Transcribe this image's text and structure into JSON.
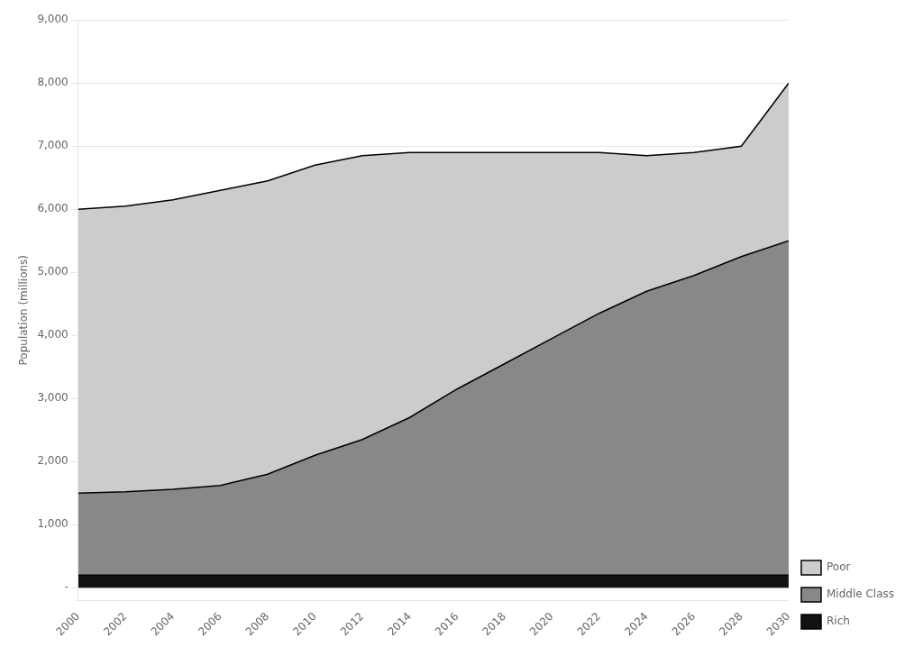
{
  "chart_data": {
    "type": "area",
    "x": [
      2000,
      2002,
      2004,
      2006,
      2008,
      2010,
      2012,
      2014,
      2016,
      2018,
      2020,
      2022,
      2024,
      2026,
      2028,
      2030
    ],
    "series": [
      {
        "name": "Rich",
        "color": "#111111",
        "values": [
          200,
          200,
          200,
          200,
          200,
          200,
          200,
          200,
          200,
          200,
          200,
          200,
          200,
          200,
          200,
          200
        ]
      },
      {
        "name": "Middle Class",
        "color": "#888888",
        "values": [
          1300,
          1320,
          1360,
          1420,
          1600,
          1900,
          2150,
          2500,
          2950,
          3350,
          3750,
          4150,
          4500,
          4750,
          5050,
          5300
        ]
      },
      {
        "name": "Poor",
        "color": "#cccccc",
        "values": [
          4500,
          4530,
          4590,
          4680,
          4650,
          4600,
          4500,
          4200,
          3750,
          3350,
          2950,
          2550,
          2150,
          1950,
          1750,
          2500
        ]
      }
    ],
    "stacked": true,
    "y_label": "Population (millions)",
    "xlim": [
      2000,
      2030
    ],
    "xticks": [
      2000,
      2002,
      2004,
      2006,
      2008,
      2010,
      2012,
      2014,
      2016,
      2018,
      2020,
      2022,
      2024,
      2026,
      2028,
      2030
    ],
    "ylim": [
      -200,
      9000
    ],
    "yticks": [
      {
        "value": 0,
        "label": "-"
      },
      {
        "value": 1000,
        "label": "1,000"
      },
      {
        "value": 2000,
        "label": "2,000"
      },
      {
        "value": 3000,
        "label": "3,000"
      },
      {
        "value": 4000,
        "label": "4,000"
      },
      {
        "value": 5000,
        "label": "5,000"
      },
      {
        "value": 6000,
        "label": "6,000"
      },
      {
        "value": 7000,
        "label": "7,000"
      },
      {
        "value": 8000,
        "label": "8,000"
      },
      {
        "value": 9000,
        "label": "9,000"
      }
    ],
    "grid": "y",
    "legend": "lower right"
  }
}
